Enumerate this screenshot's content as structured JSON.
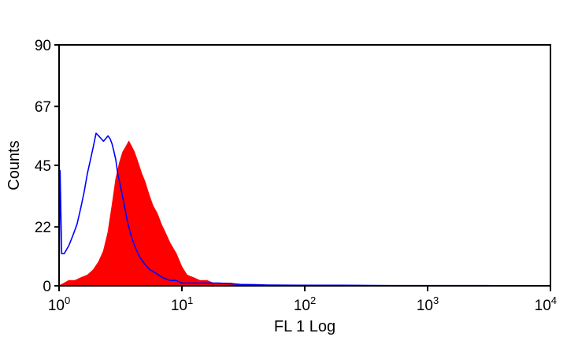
{
  "chart_data": {
    "type": "area",
    "title": "",
    "xlabel": "FL 1 Log",
    "ylabel": "Counts",
    "x_scale": "log",
    "xlim": [
      1,
      10000
    ],
    "ylim": [
      0,
      90
    ],
    "y_ticks": [
      "0",
      "22",
      "45",
      "67",
      "90"
    ],
    "x_ticks": [
      {
        "base": "10",
        "exp": "0"
      },
      {
        "base": "10",
        "exp": "1"
      },
      {
        "base": "10",
        "exp": "2"
      },
      {
        "base": "10",
        "exp": "3"
      },
      {
        "base": "10",
        "exp": "4"
      }
    ],
    "grid": false,
    "series": [
      {
        "style": "filled",
        "color": "#ff0000",
        "x": [
          1.0,
          1.1,
          1.2,
          1.35,
          1.5,
          1.7,
          1.9,
          2.1,
          2.3,
          2.5,
          2.7,
          2.9,
          3.1,
          3.3,
          3.5,
          3.7,
          3.9,
          4.1,
          4.4,
          4.7,
          5.0,
          5.4,
          5.8,
          6.3,
          6.8,
          7.3,
          8.0,
          9.0,
          10.0,
          11.0,
          12.5,
          14.0,
          16.0,
          18.0,
          20.0,
          25.0,
          30.0,
          40.0,
          50.0,
          70.0,
          100.0,
          200.0,
          500.0,
          1000.0,
          3000.0,
          10000.0
        ],
        "y": [
          0,
          1,
          2,
          2,
          3,
          4,
          6,
          9,
          13,
          20,
          30,
          40,
          46,
          50,
          52,
          54,
          52,
          50,
          46,
          42,
          39,
          34,
          30,
          27,
          23,
          20,
          16,
          12,
          7,
          4,
          3,
          2,
          2,
          1,
          1,
          1,
          0.5,
          0.5,
          0.3,
          0.3,
          0.2,
          0.2,
          0.1,
          0.1,
          0.1,
          0
        ]
      },
      {
        "style": "line",
        "color": "#0000ff",
        "x": [
          1.0,
          1.02,
          1.05,
          1.1,
          1.2,
          1.3,
          1.4,
          1.5,
          1.6,
          1.7,
          1.8,
          1.9,
          2.0,
          2.1,
          2.2,
          2.3,
          2.4,
          2.5,
          2.6,
          2.7,
          2.8,
          2.9,
          3.0,
          3.2,
          3.4,
          3.6,
          3.9,
          4.2,
          4.5,
          5.0,
          5.5,
          6.0,
          7.0,
          8.0,
          9.0,
          10.0,
          12.0,
          15.0,
          20.0,
          30.0,
          50.0,
          100.0,
          200.0,
          500.0,
          1000.0,
          3000.0,
          10000.0
        ],
        "y": [
          0,
          43,
          12,
          12,
          15,
          19,
          23,
          29,
          35,
          42,
          47,
          52,
          57,
          56,
          55,
          54,
          55,
          56,
          55,
          53,
          50,
          47,
          42,
          36,
          30,
          24,
          18,
          14,
          11,
          8,
          6,
          5,
          3,
          2,
          2,
          1,
          1,
          1,
          1,
          0.5,
          0.3,
          0.2,
          0.2,
          0.1,
          0.1,
          0.1,
          0
        ]
      }
    ]
  }
}
